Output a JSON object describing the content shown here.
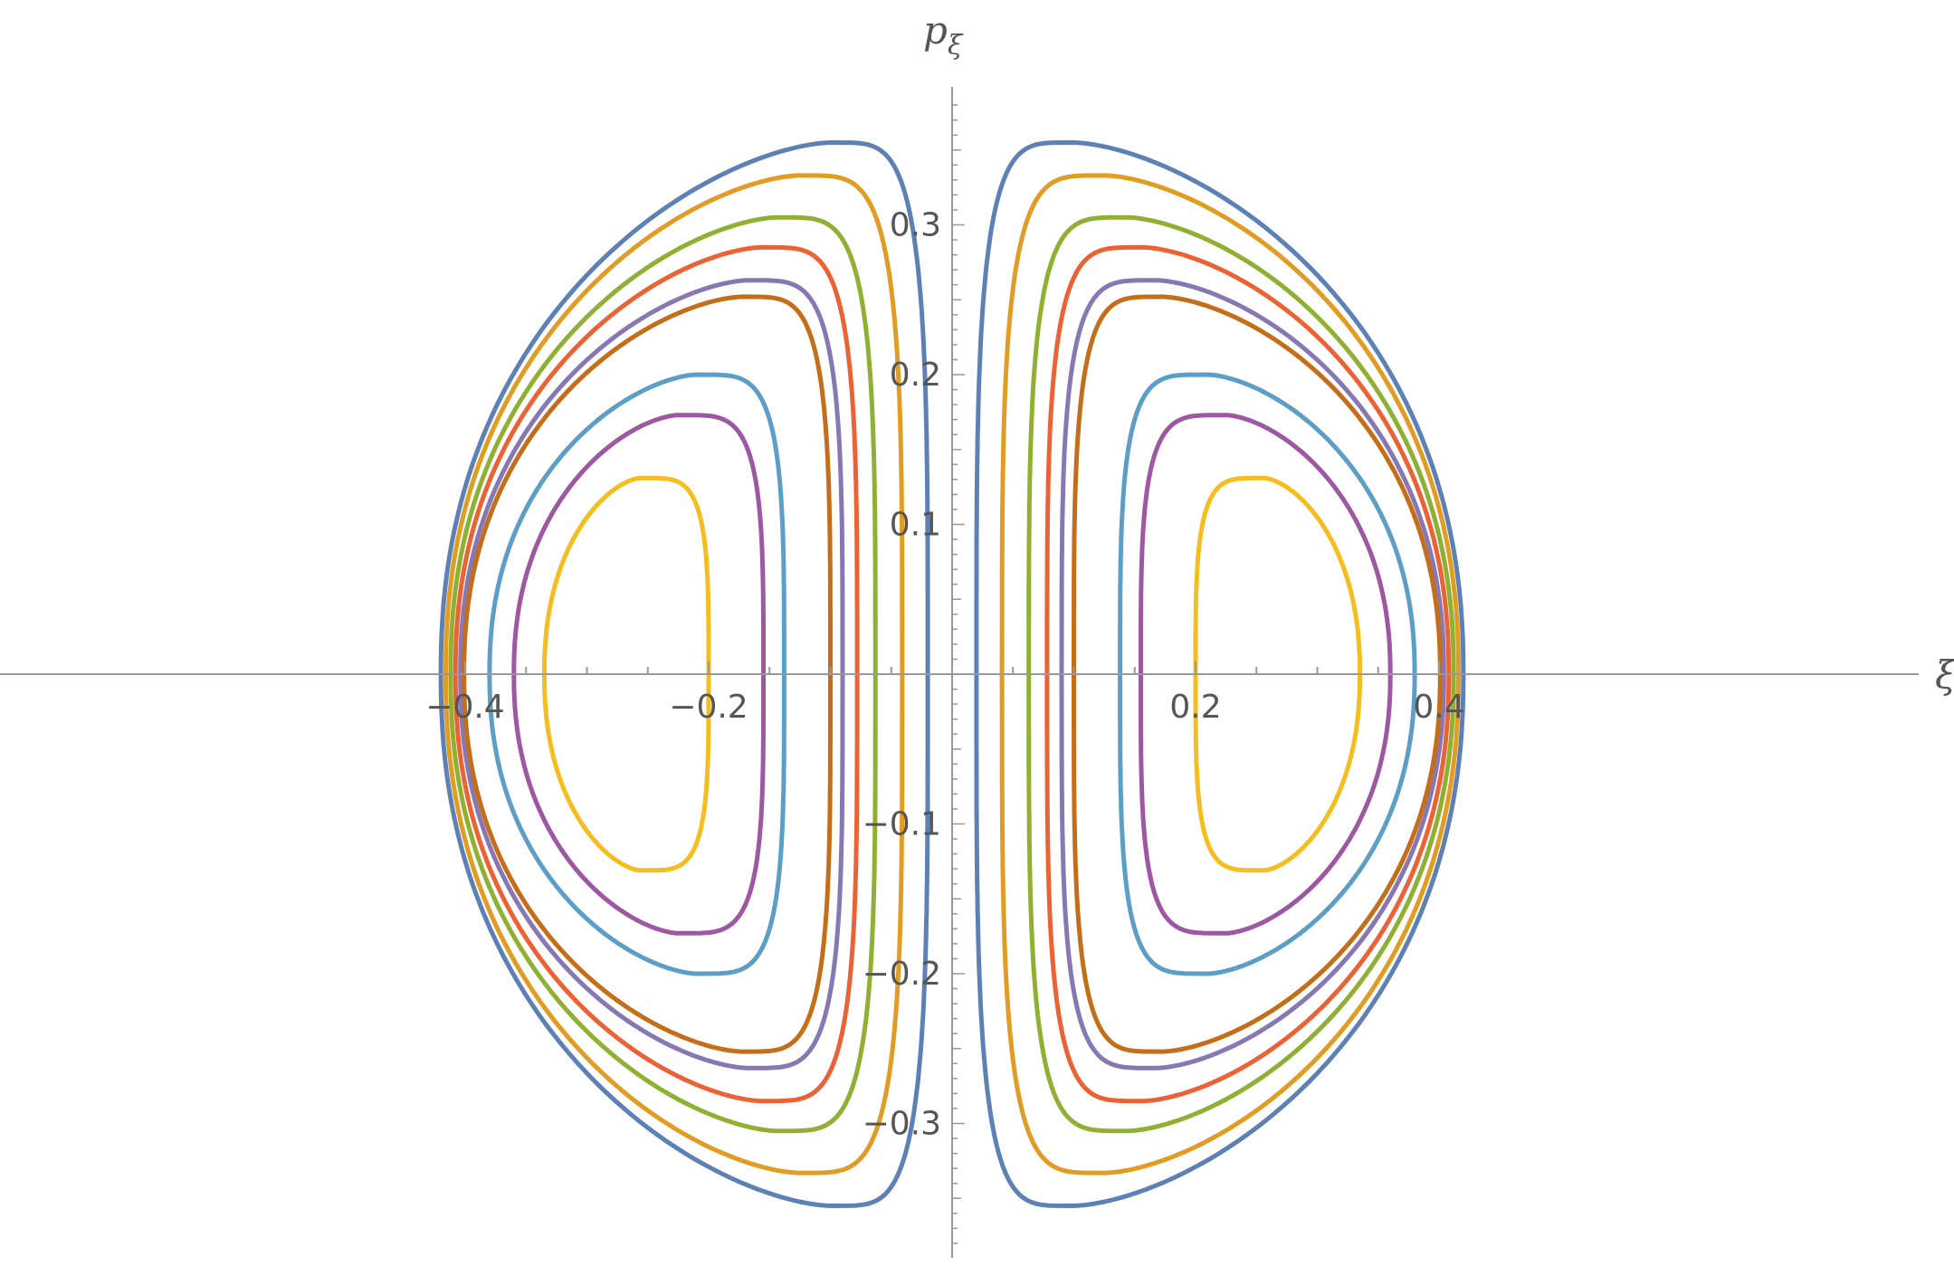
{
  "chart_data": {
    "type": "line",
    "title": "",
    "xlabel": "ξ",
    "ylabel_main": "p",
    "ylabel_sub": "ξ",
    "xlim": [
      -0.43,
      0.43
    ],
    "ylim": [
      -0.39,
      0.39
    ],
    "xticks": [
      -0.4,
      -0.2,
      0.2,
      0.4
    ],
    "xtick_labels": [
      "-0.4",
      "-0.2",
      "0.2",
      "0.4"
    ],
    "yticks": [
      -0.3,
      -0.2,
      -0.1,
      0.1,
      0.2,
      0.3
    ],
    "ytick_labels": [
      "-0.3",
      "-0.2",
      "-0.1",
      "0.1",
      "0.2",
      "0.3"
    ],
    "grid": false,
    "legend": "none",
    "series": [
      {
        "color": "#5E81B5",
        "x_inner": 0.02,
        "x_outer": 0.42,
        "x_peak": 0.1,
        "p_max": 0.355
      },
      {
        "color": "#E19C24",
        "x_inner": 0.041,
        "x_outer": 0.416,
        "x_peak": 0.126,
        "p_max": 0.333
      },
      {
        "color": "#8FB032",
        "x_inner": 0.063,
        "x_outer": 0.412,
        "x_peak": 0.144,
        "p_max": 0.305
      },
      {
        "color": "#EB6235",
        "x_inner": 0.078,
        "x_outer": 0.408,
        "x_peak": 0.157,
        "p_max": 0.285
      },
      {
        "color": "#8778B3",
        "x_inner": 0.09,
        "x_outer": 0.404,
        "x_peak": 0.168,
        "p_max": 0.263
      },
      {
        "color": "#C56E1A",
        "x_inner": 0.1,
        "x_outer": 0.401,
        "x_peak": 0.173,
        "p_max": 0.252
      },
      {
        "color": "#5D9EC7",
        "x_inner": 0.138,
        "x_outer": 0.38,
        "x_peak": 0.21,
        "p_max": 0.2
      },
      {
        "color": "#9E57A3",
        "x_inner": 0.155,
        "x_outer": 0.36,
        "x_peak": 0.225,
        "p_max": 0.173
      },
      {
        "color": "#F5BE20",
        "x_inner": 0.2,
        "x_outer": 0.335,
        "x_peak": 0.256,
        "p_max": 0.131
      }
    ]
  }
}
